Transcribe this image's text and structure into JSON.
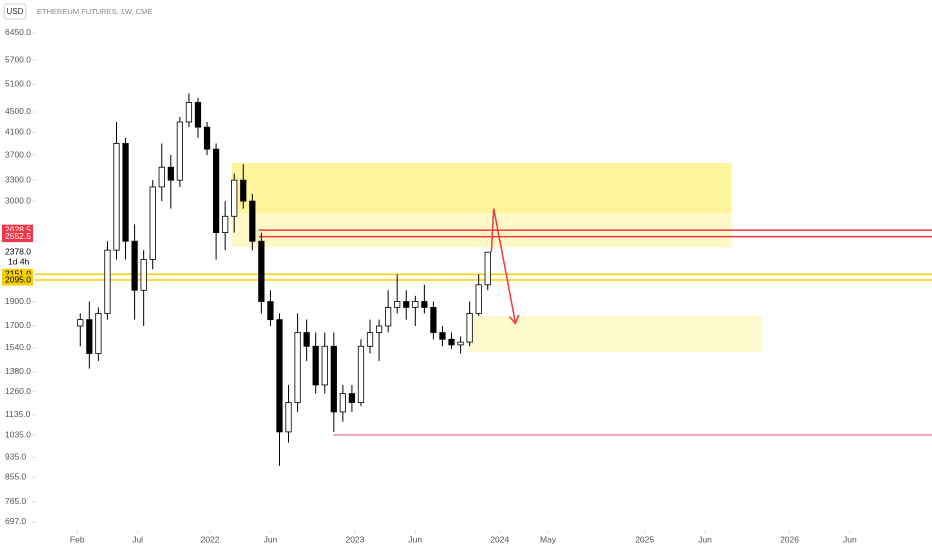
{
  "chart_data": {
    "type": "candlestick",
    "title": "ETHEREUM FUTURES, 1W, CME",
    "currency": "USD",
    "log_scale": true,
    "grid": false,
    "up_color": "#ffffff",
    "down_color": "#000000",
    "xlim": [
      -5.4,
      71.8
    ],
    "ylim": [
      672,
      7490
    ],
    "xticks": [
      {
        "value": 1,
        "label": "Feb"
      },
      {
        "value": 6,
        "label": "Jul"
      },
      {
        "value": 12,
        "label": "2022"
      },
      {
        "value": 17,
        "label": "Jun"
      },
      {
        "value": 24,
        "label": "2023"
      },
      {
        "value": 29,
        "label": "Jun"
      },
      {
        "value": 36,
        "label": "2024"
      },
      {
        "value": 40,
        "label": "May"
      },
      {
        "value": 48,
        "label": "2025"
      },
      {
        "value": 53,
        "label": "Jun"
      },
      {
        "value": 60,
        "label": "2026"
      },
      {
        "value": 65,
        "label": "Jun"
      }
    ],
    "yticks": [
      {
        "value": 6450,
        "label": "6450.0"
      },
      {
        "value": 5700,
        "label": "5700.0"
      },
      {
        "value": 5100,
        "label": "5100.0"
      },
      {
        "value": 4500,
        "label": "4500.0"
      },
      {
        "value": 4100,
        "label": "4100.0"
      },
      {
        "value": 3700,
        "label": "3700.0"
      },
      {
        "value": 3300,
        "label": "3300.0"
      },
      {
        "value": 3000,
        "label": "3000.0"
      },
      {
        "value": 1900,
        "label": "1900.0"
      },
      {
        "value": 1700,
        "label": "1700.0"
      },
      {
        "value": 1540,
        "label": "1540.0"
      },
      {
        "value": 1380,
        "label": "1380.0"
      },
      {
        "value": 1260,
        "label": "1260.0"
      },
      {
        "value": 1135,
        "label": "1135.0"
      },
      {
        "value": 1035,
        "label": "1035.0"
      },
      {
        "value": 935,
        "label": "935.0"
      },
      {
        "value": 855,
        "label": "855.0"
      },
      {
        "value": 765,
        "label": "765.0"
      },
      {
        "value": 697,
        "label": "697.0"
      }
    ],
    "x": [
      1.25,
      2,
      2.75,
      3.5,
      4.25,
      5,
      5.75,
      6.5,
      7.25,
      8,
      8.75,
      9.5,
      10.25,
      11,
      11.75,
      12.5,
      13.25,
      14,
      14.75,
      15.5,
      16.25,
      17,
      17.75,
      18.5,
      19.25,
      20,
      20.75,
      21.5,
      22.25,
      23,
      23.75,
      24.5,
      25.25,
      26,
      26.75,
      27.5,
      28.25,
      29,
      29.75,
      30.5,
      31.25,
      32,
      32.75,
      33.5,
      34.25,
      35
    ],
    "candles": {
      "open": [
        1700,
        1750,
        1500,
        1800,
        2400,
        3900,
        2500,
        2000,
        2300,
        3200,
        3500,
        3300,
        4300,
        4700,
        4200,
        3800,
        2600,
        2800,
        3300,
        3000,
        2500,
        1900,
        1750,
        1050,
        1200,
        1650,
        1550,
        1300,
        1550,
        1150,
        1250,
        1200,
        1550,
        1650,
        1700,
        1850,
        1900,
        1850,
        1900,
        1850,
        1650,
        1600,
        1560,
        1580,
        1800,
        2050
      ],
      "high": [
        1800,
        1900,
        1850,
        2500,
        4300,
        4000,
        2700,
        2400,
        3300,
        3900,
        3700,
        4400,
        4900,
        4800,
        4300,
        3900,
        3000,
        3400,
        3550,
        3100,
        2600,
        2000,
        1800,
        1300,
        1800,
        1750,
        1650,
        1650,
        1650,
        1300,
        1300,
        1600,
        1750,
        1750,
        2000,
        2150,
        2000,
        1950,
        2050,
        1900,
        1700,
        1650,
        1620,
        1900,
        2150,
        2380
      ],
      "low": [
        1550,
        1400,
        1450,
        1750,
        2300,
        2300,
        1750,
        1700,
        2200,
        3000,
        2900,
        3200,
        4200,
        4000,
        3700,
        2300,
        2400,
        2600,
        2900,
        2400,
        1800,
        1700,
        900,
        1000,
        1150,
        1450,
        1250,
        1250,
        1050,
        1100,
        1150,
        1180,
        1500,
        1450,
        1650,
        1800,
        1750,
        1700,
        1800,
        1600,
        1550,
        1530,
        1500,
        1550,
        1780,
        2000
      ],
      "close": [
        1750,
        1500,
        1800,
        2400,
        3900,
        2500,
        2000,
        2300,
        3200,
        3500,
        3300,
        4300,
        4700,
        4200,
        3800,
        2600,
        2800,
        3300,
        3000,
        2500,
        1900,
        1750,
        1050,
        1200,
        1650,
        1550,
        1300,
        1550,
        1150,
        1250,
        1200,
        1550,
        1650,
        1700,
        1850,
        1900,
        1850,
        1900,
        1850,
        1650,
        1600,
        1560,
        1580,
        1800,
        2050,
        2378
      ]
    },
    "zones": [
      {
        "x": [
          13.8,
          55.2
        ],
        "y": [
          2433,
          3570
        ],
        "color": "rgba(255,235,59,0.28)"
      },
      {
        "x": [
          13.8,
          55.2
        ],
        "y": [
          2843,
          3570
        ],
        "color": "rgba(255,235,59,0.30)"
      },
      {
        "x": [
          33.5,
          57.7
        ],
        "y": [
          1511,
          1778
        ],
        "color": "rgba(255,235,59,0.25)"
      }
    ],
    "levels": [
      {
        "value": 2628.5,
        "label": "2628.5",
        "x_from": 16.05,
        "color": "#f23645"
      },
      {
        "value": 2552.5,
        "label": "2552.5",
        "x_from": 16.05,
        "color": "#f23645"
      },
      {
        "value": 2151.0,
        "label": "2151.0",
        "color": "#f5d000"
      },
      {
        "value": 2095.0,
        "label": "2095.0",
        "color": "#f5d000"
      },
      {
        "value": 1035,
        "x_from": 22.2,
        "color": "#f28b9b"
      }
    ],
    "last_price": {
      "value": 2378,
      "label": "2378.0"
    },
    "countdown": "1d 4h",
    "arrow": {
      "x": [
        35.3,
        35.5,
        37.3
      ],
      "y": [
        2378,
        2900,
        1720
      ],
      "color": "#f23645"
    }
  }
}
